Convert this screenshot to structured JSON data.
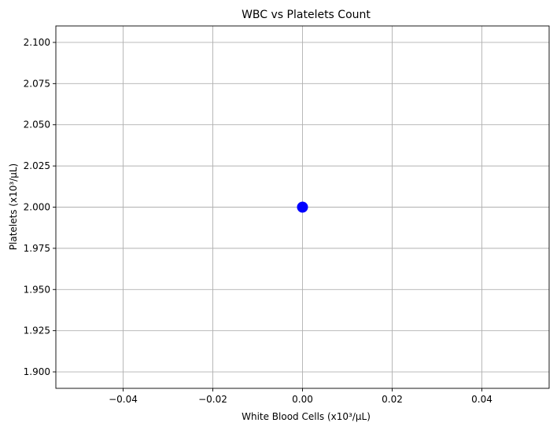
{
  "chart_data": {
    "type": "scatter",
    "title": "WBC vs Platelets Count",
    "xlabel": "White Blood Cells (x10³/µL)",
    "ylabel": "Platelets (x10³/µL)",
    "xlim": [
      -0.055,
      0.055
    ],
    "ylim": [
      1.89,
      2.11
    ],
    "xticks": [
      -0.04,
      -0.02,
      0.0,
      0.02,
      0.04
    ],
    "xtick_labels": [
      "−0.04",
      "−0.02",
      "0.00",
      "0.02",
      "0.04"
    ],
    "yticks": [
      1.9,
      1.925,
      1.95,
      1.975,
      2.0,
      2.025,
      2.05,
      2.075,
      2.1
    ],
    "ytick_labels": [
      "1.900",
      "1.925",
      "1.950",
      "1.975",
      "2.000",
      "2.025",
      "2.050",
      "2.075",
      "2.100"
    ],
    "grid": true,
    "marker_color": "#0000ff",
    "points": [
      {
        "x": 0.0,
        "y": 2.0
      }
    ]
  }
}
